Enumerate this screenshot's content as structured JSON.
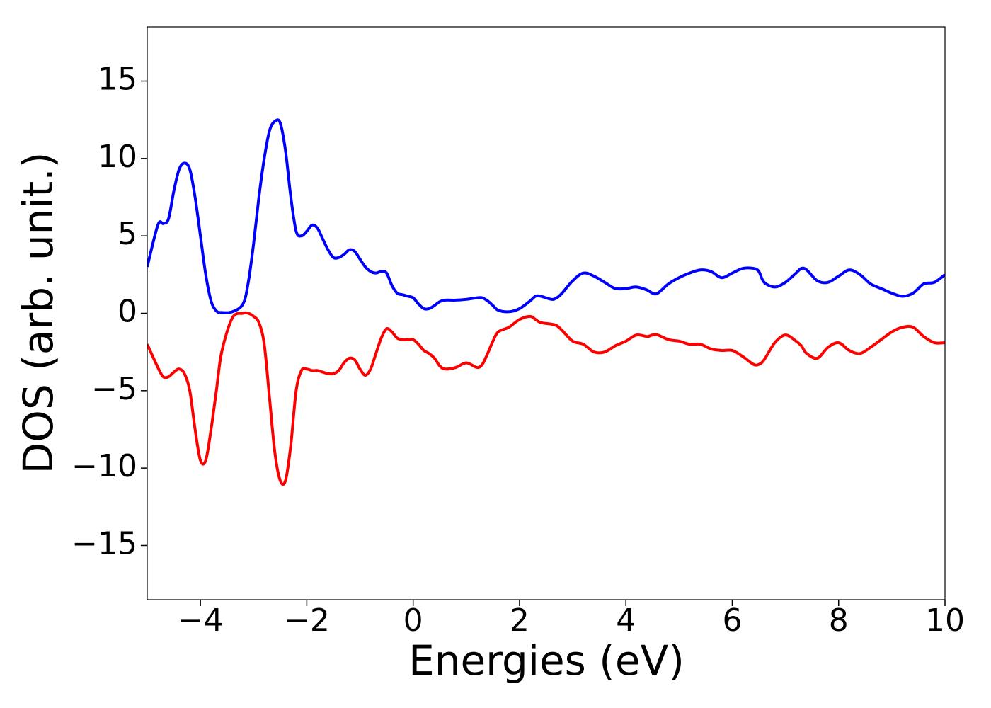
{
  "chart_data": {
    "type": "line",
    "xlabel": "Energies (eV)",
    "ylabel": "DOS (arb. unit.)",
    "x": [
      -5,
      -4.8,
      -4.7,
      -4.6,
      -4.5,
      -4.4,
      -4.3,
      -4.2,
      -4.1,
      -4.0,
      -3.9,
      -3.8,
      -3.7,
      -3.6,
      -3.4,
      -3.2,
      -3.1,
      -3.0,
      -2.9,
      -2.8,
      -2.7,
      -2.6,
      -2.5,
      -2.4,
      -2.3,
      -2.2,
      -2.1,
      -2.0,
      -1.9,
      -1.8,
      -1.7,
      -1.6,
      -1.5,
      -1.4,
      -1.3,
      -1.2,
      -1.1,
      -1.0,
      -0.9,
      -0.8,
      -0.7,
      -0.6,
      -0.5,
      -0.4,
      -0.3,
      -0.2,
      -0.1,
      0,
      0.1,
      0.2,
      0.3,
      0.4,
      0.5,
      0.6,
      0.8,
      1.0,
      1.2,
      1.3,
      1.4,
      1.5,
      1.6,
      1.8,
      2.0,
      2.2,
      2.3,
      2.4,
      2.6,
      2.7,
      2.8,
      3.0,
      3.2,
      3.4,
      3.6,
      3.8,
      4.0,
      4.2,
      4.4,
      4.5,
      4.6,
      4.8,
      5.0,
      5.2,
      5.4,
      5.6,
      5.8,
      6.0,
      6.2,
      6.4,
      6.5,
      6.6,
      6.8,
      7.0,
      7.2,
      7.3,
      7.4,
      7.6,
      7.8,
      8.0,
      8.2,
      8.4,
      8.6,
      8.8,
      9.0,
      9.2,
      9.4,
      9.6,
      9.8,
      10.0
    ],
    "series": [
      {
        "color": "#0000ff",
        "values": [
          3.0,
          5.7,
          5.8,
          6.1,
          7.9,
          9.3,
          9.7,
          9.3,
          7.5,
          5.0,
          2.5,
          0.8,
          0.15,
          0.05,
          0.1,
          0.6,
          2,
          4.5,
          7.5,
          10,
          11.8,
          12.4,
          12.3,
          10.5,
          7.5,
          5.3,
          5.0,
          5.3,
          5.7,
          5.5,
          4.8,
          4.1,
          3.6,
          3.6,
          3.8,
          4.1,
          4.0,
          3.5,
          3.0,
          2.7,
          2.6,
          2.7,
          2.6,
          1.8,
          1.3,
          1.2,
          1.1,
          1.0,
          0.6,
          0.3,
          0.3,
          0.5,
          0.75,
          0.85,
          0.85,
          0.9,
          1.0,
          1.0,
          0.8,
          0.5,
          0.2,
          0.1,
          0.3,
          0.8,
          1.1,
          1.1,
          0.9,
          1.0,
          1.3,
          2.1,
          2.6,
          2.4,
          2.0,
          1.6,
          1.6,
          1.7,
          1.5,
          1.3,
          1.3,
          1.9,
          2.3,
          2.6,
          2.8,
          2.7,
          2.3,
          2.6,
          2.9,
          2.9,
          2.7,
          2.0,
          1.7,
          2.0,
          2.6,
          2.9,
          2.8,
          2.1,
          2.0,
          2.4,
          2.8,
          2.5,
          1.9,
          1.6,
          1.3,
          1.1,
          1.3,
          1.9,
          2.0,
          2.5
        ]
      },
      {
        "color": "#ff0000",
        "values": [
          -2.0,
          -3.5,
          -4.1,
          -4.1,
          -3.8,
          -3.6,
          -3.9,
          -5.0,
          -7.5,
          -9.5,
          -9.5,
          -7.5,
          -5.0,
          -2.5,
          -0.3,
          0.0,
          0.0,
          -0.2,
          -0.6,
          -2.0,
          -5.5,
          -9.0,
          -10.8,
          -10.8,
          -8.5,
          -5.0,
          -3.7,
          -3.6,
          -3.7,
          -3.7,
          -3.8,
          -3.9,
          -3.9,
          -3.7,
          -3.2,
          -2.9,
          -3.0,
          -3.6,
          -4.0,
          -3.6,
          -2.6,
          -1.6,
          -1.0,
          -1.2,
          -1.6,
          -1.7,
          -1.7,
          -1.7,
          -2.0,
          -2.4,
          -2.6,
          -2.9,
          -3.4,
          -3.6,
          -3.5,
          -3.2,
          -3.5,
          -3.3,
          -2.6,
          -1.8,
          -1.2,
          -0.9,
          -0.4,
          -0.2,
          -0.4,
          -0.6,
          -0.7,
          -0.8,
          -1.1,
          -1.8,
          -2.0,
          -2.5,
          -2.5,
          -2.1,
          -1.8,
          -1.4,
          -1.5,
          -1.4,
          -1.4,
          -1.7,
          -1.8,
          -2.0,
          -2.0,
          -2.3,
          -2.4,
          -2.4,
          -2.8,
          -3.3,
          -3.3,
          -3.0,
          -1.9,
          -1.4,
          -1.8,
          -2.1,
          -2.6,
          -2.9,
          -2.2,
          -1.9,
          -2.4,
          -2.6,
          -2.2,
          -1.7,
          -1.2,
          -0.9,
          -0.9,
          -1.5,
          -1.9,
          -1.9
        ]
      }
    ],
    "xlim": [
      -5,
      10
    ],
    "ylim": [
      -18.5,
      18.5
    ],
    "xticks": [
      {
        "value": -4,
        "label": "−4"
      },
      {
        "value": -2,
        "label": "−2"
      },
      0,
      2,
      4,
      6,
      8,
      10
    ],
    "yticks": [
      {
        "value": -15,
        "label": "−15"
      },
      {
        "value": -10,
        "label": "−10"
      },
      {
        "value": -5,
        "label": "−5"
      },
      0,
      5,
      10,
      15
    ]
  }
}
